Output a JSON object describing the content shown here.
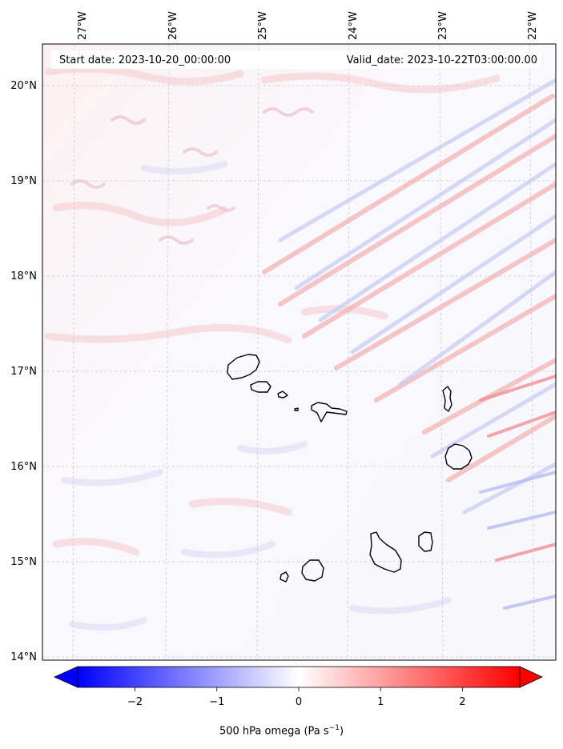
{
  "map": {
    "start_date": "Start date: 2023-10-20_00:00:00",
    "valid_date": "Valid_date: 2023-10-22T03:00:00.00",
    "longitude_labels": [
      "27°W",
      "26°W",
      "25°W",
      "24°W",
      "23°W",
      "22°W"
    ],
    "latitude_labels": [
      "20°N",
      "19°N",
      "18°N",
      "17°N",
      "16°N",
      "15°N",
      "14°N"
    ],
    "islands": [
      "Santo Antão",
      "São Vicente",
      "Santa Luzia",
      "Branco",
      "São Nicolau",
      "Sal",
      "Boa Vista",
      "Brava",
      "Fogo",
      "Santiago",
      "Maio"
    ]
  },
  "colorbar": {
    "title_main": "500 hPa omega (Pa s",
    "title_sup": "−1",
    "title_end": ")",
    "ticks": [
      "−2",
      "−1",
      "0",
      "1",
      "2"
    ],
    "tick_values": [
      -2,
      -1,
      0,
      1,
      2
    ],
    "range": [
      -2.7,
      2.7
    ],
    "low_color": "#0000ff",
    "mid_color": "#ffffff",
    "high_color": "#ff0000"
  }
}
